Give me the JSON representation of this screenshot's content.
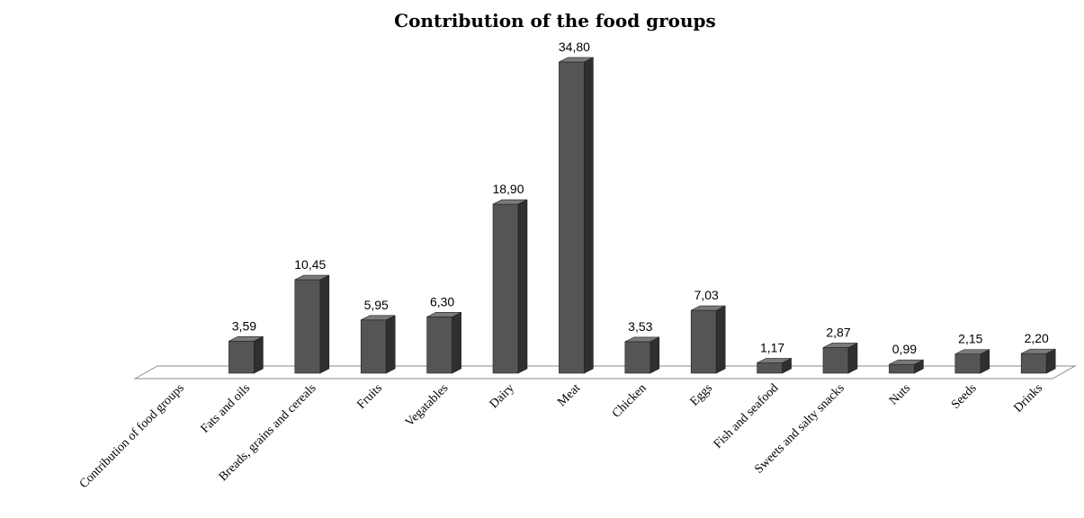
{
  "chart_data": {
    "type": "bar",
    "title": "Contribution  of the food groups",
    "categories": [
      "Contribution of food groups",
      "Fats and oils",
      "Breads, grains and cereals",
      "Fruits",
      "Vegatables",
      "Dairy",
      "Meat",
      "Chicken",
      "Eggs",
      "Fish and seafood",
      "Sweets and salty snacks",
      "Nuts",
      "Seeds",
      "Drinks"
    ],
    "values": [
      null,
      3.59,
      10.45,
      5.95,
      6.3,
      18.9,
      34.8,
      3.53,
      7.03,
      1.17,
      2.87,
      0.99,
      2.15,
      2.2
    ],
    "value_labels": [
      "",
      "3,59",
      "10,45",
      "5,95",
      "6,30",
      "18,90",
      "34,80",
      "3,53",
      "7,03",
      "1,17",
      "2,87",
      "0,99",
      "2,15",
      "2,20"
    ],
    "ylim": [
      0,
      36
    ],
    "grid": false,
    "legend": "none",
    "colors": {
      "bar_front": "#555555",
      "bar_side": "#2f2f2f",
      "bar_top": "#7a7a7a",
      "floor": "#ffffff",
      "floor_stroke": "#8a8a8a"
    }
  }
}
